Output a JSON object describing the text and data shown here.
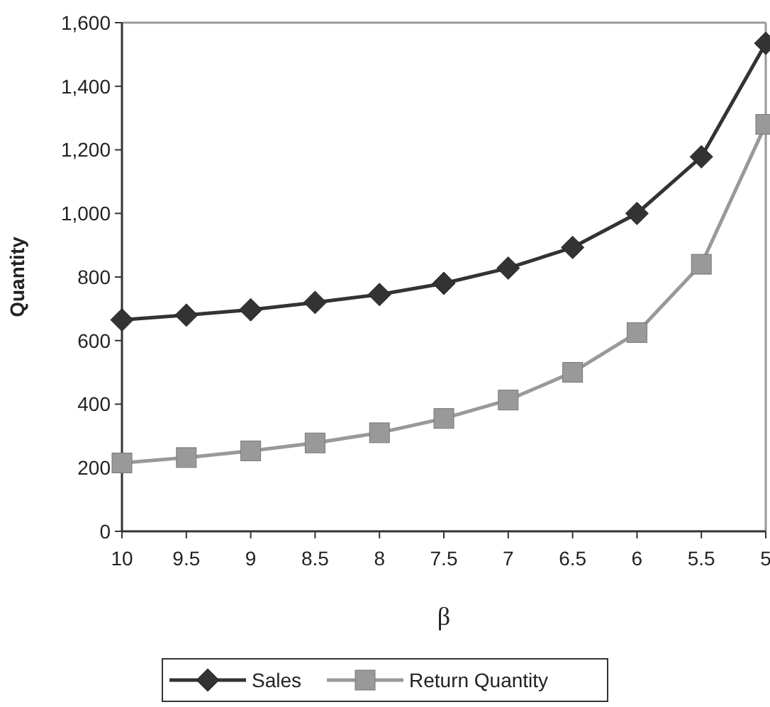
{
  "chart_data": {
    "type": "line",
    "xlabel": "β",
    "ylabel": "Quantity",
    "x": [
      10,
      9.5,
      9,
      8.5,
      8,
      7.5,
      7,
      6.5,
      6,
      5.5,
      5
    ],
    "xlim": [
      10,
      5
    ],
    "xticks": [
      10,
      9.5,
      9,
      8.5,
      8,
      7.5,
      7,
      6.5,
      6,
      5.5,
      5
    ],
    "ylim": [
      0,
      1600
    ],
    "yticks": [
      0,
      {
        "value": 200,
        "label": "200"
      },
      {
        "value": 400,
        "label": "400"
      },
      {
        "value": 600,
        "label": "600"
      },
      {
        "value": 800,
        "label": "800"
      },
      {
        "value": 1000,
        "label": "1,000"
      },
      {
        "value": 1200,
        "label": "1,200"
      },
      {
        "value": 1400,
        "label": "1,400"
      },
      {
        "value": 1600,
        "label": "1,600"
      }
    ],
    "grid": false,
    "legend": "bottom",
    "series": [
      {
        "name": "Sales",
        "color": "#333333",
        "marker": "diamond",
        "values": [
          665,
          680,
          697,
          720,
          745,
          780,
          828,
          893,
          1000,
          1178,
          1535
        ]
      },
      {
        "name": "Return Quantity",
        "color": "#999999",
        "marker": "square",
        "values": [
          215,
          232,
          253,
          278,
          310,
          355,
          413,
          500,
          625,
          840,
          1280
        ]
      }
    ]
  }
}
